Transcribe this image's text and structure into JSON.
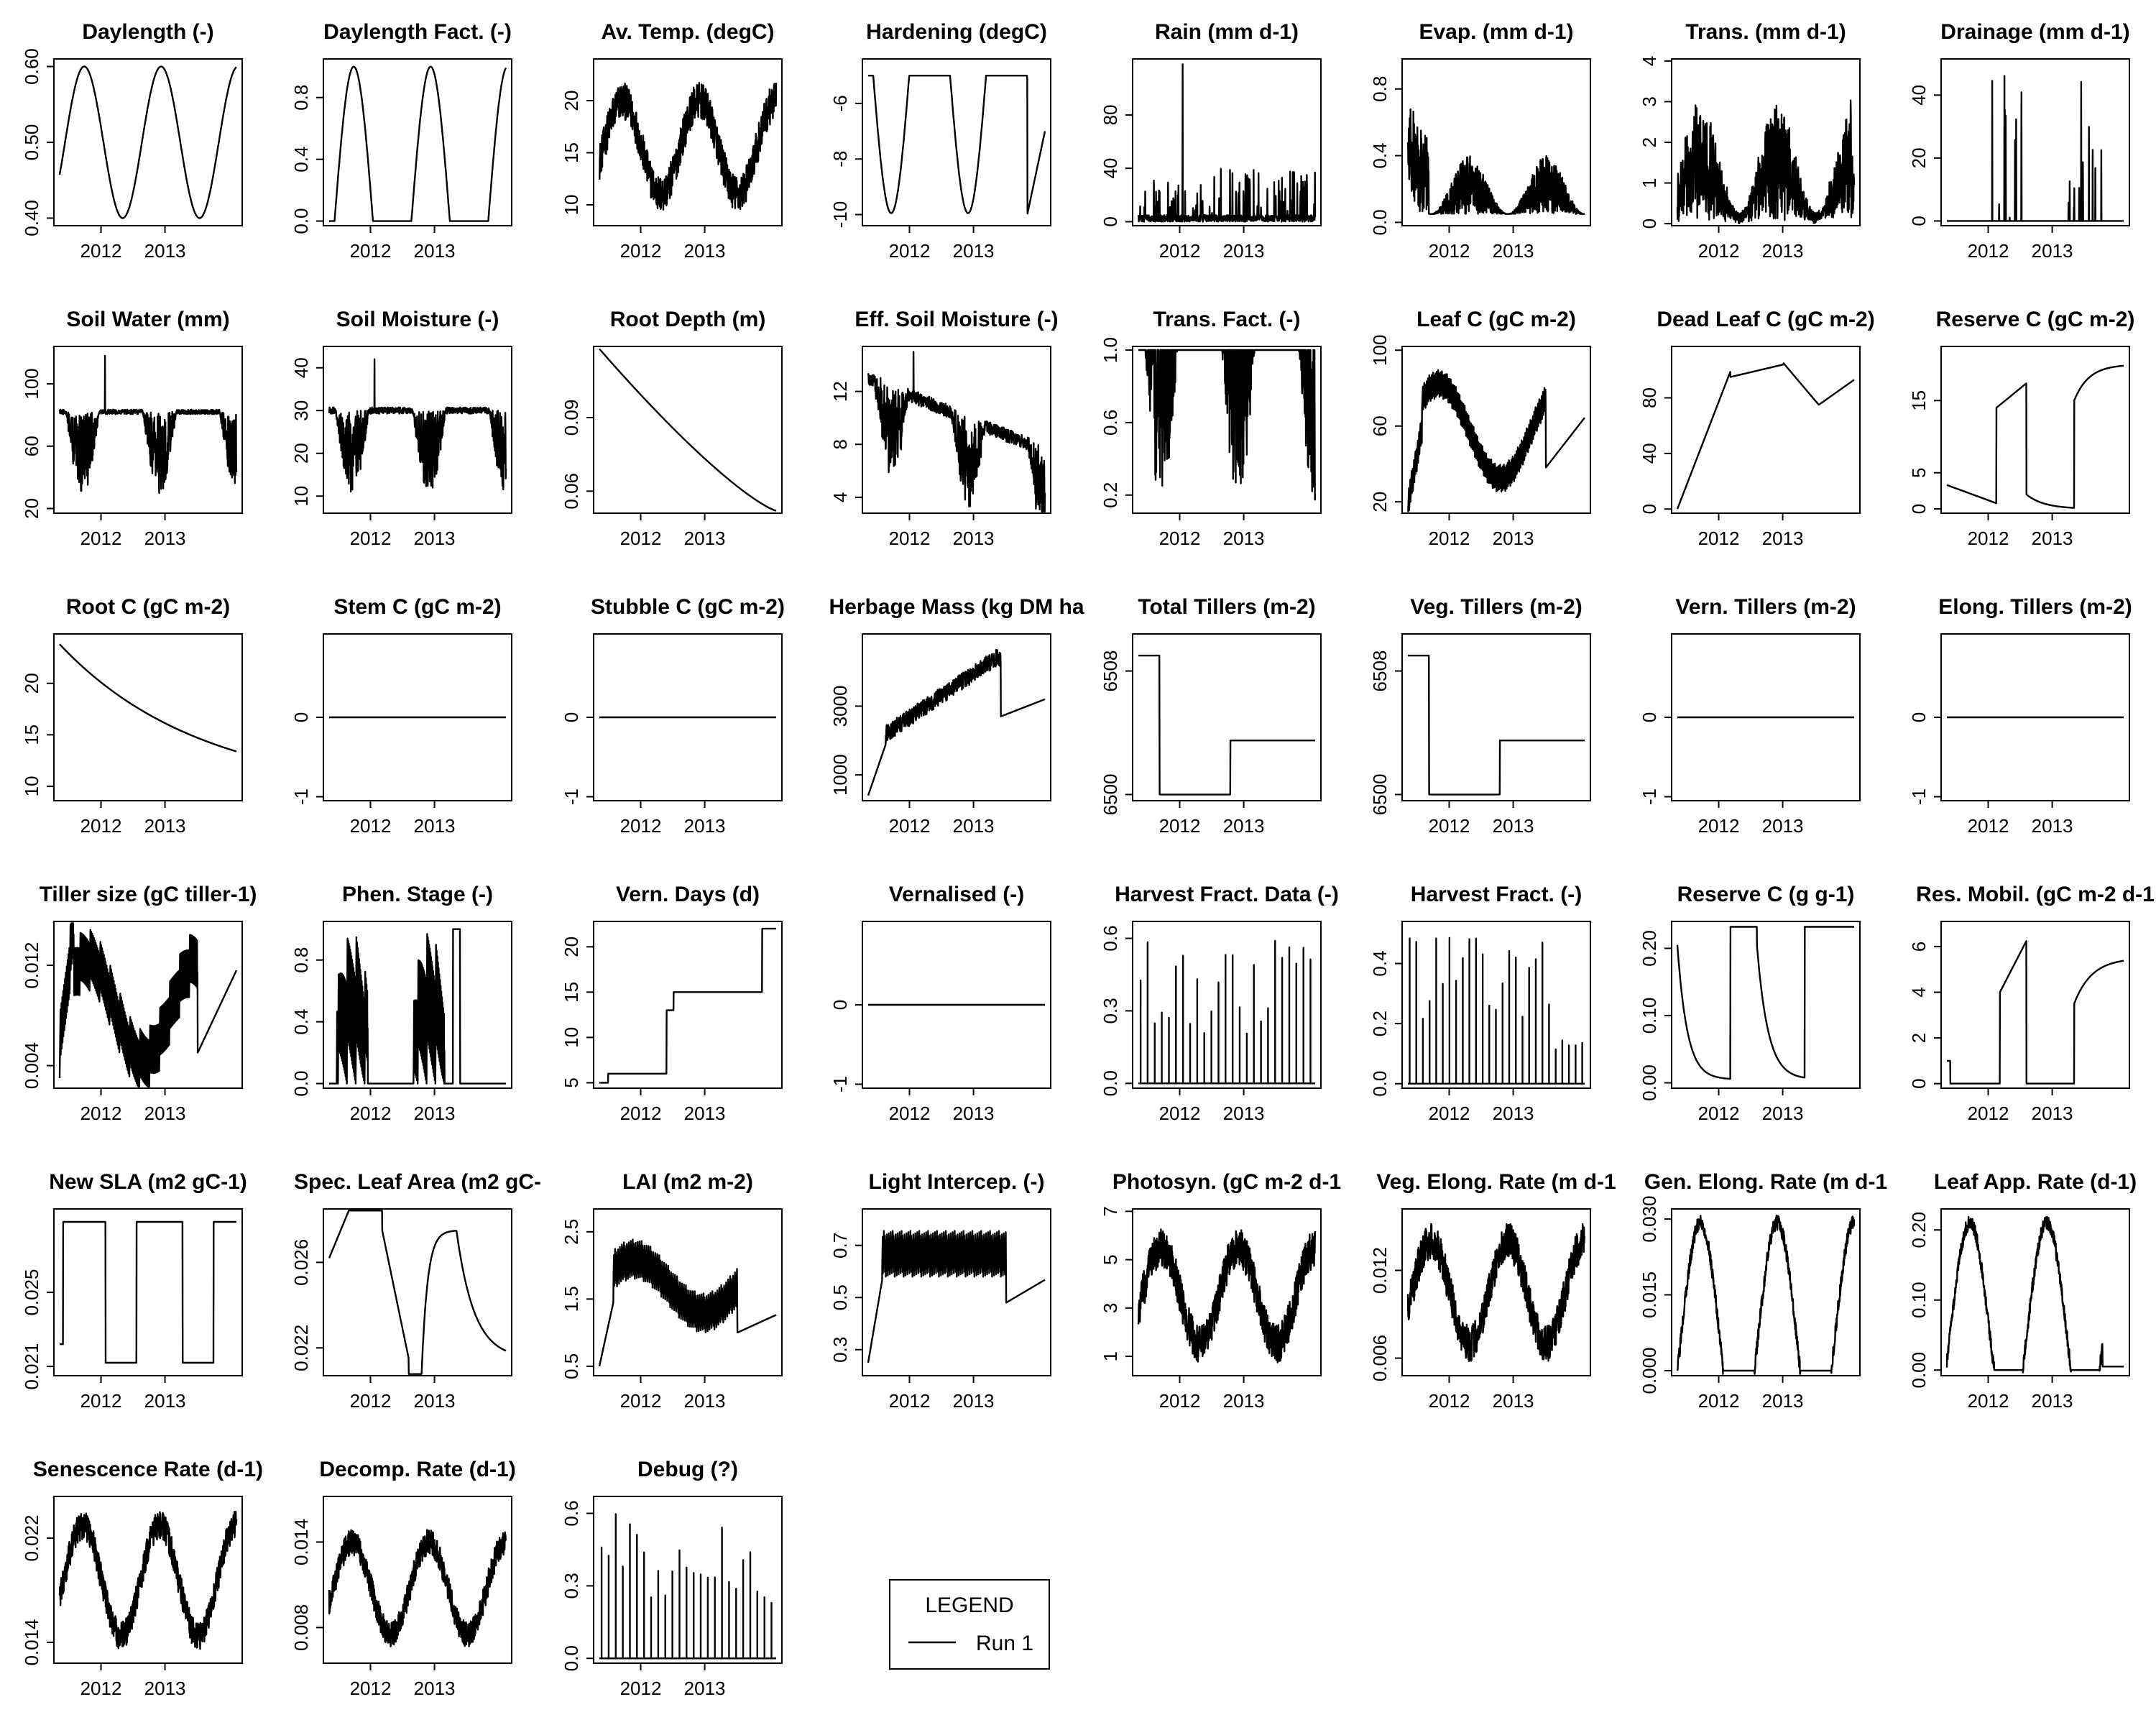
{
  "legend": {
    "title": "LEGEND",
    "entries": [
      "Run 1"
    ]
  },
  "x_ticks": [
    "2012",
    "2013"
  ],
  "chart_data": [
    {
      "type": "line",
      "title": "Daylength (-)",
      "ylim": [
        0.39,
        0.61
      ],
      "yticks": [
        "0.40",
        "0.50",
        "0.60"
      ],
      "yvals": [
        0.4,
        0.5,
        0.6
      ],
      "shape": "daylen",
      "series": [
        {
          "name": "Run 1"
        }
      ]
    },
    {
      "type": "line",
      "title": "Daylength Fact. (-)",
      "ylim": [
        -0.03,
        1.05
      ],
      "yticks": [
        "0.0",
        "0.4",
        "0.8"
      ],
      "yvals": [
        0.0,
        0.4,
        0.8
      ],
      "shape": "dlfact",
      "series": [
        {
          "name": "Run 1"
        }
      ]
    },
    {
      "type": "line",
      "title": "Av. Temp. (degC)",
      "ylim": [
        8,
        24
      ],
      "yticks": [
        "10",
        "15",
        "20"
      ],
      "yvals": [
        10,
        15,
        20
      ],
      "shape": "temp",
      "series": [
        {
          "name": "Run 1"
        }
      ]
    },
    {
      "type": "line",
      "title": "Hardening (degC)",
      "ylim": [
        -10.4,
        -4.4
      ],
      "yticks": [
        "-10",
        "-8",
        "-6"
      ],
      "yvals": [
        -10,
        -8,
        -6
      ],
      "shape": "hard",
      "series": [
        {
          "name": "Run 1"
        }
      ]
    },
    {
      "type": "line",
      "title": "Rain (mm d-1)",
      "ylim": [
        -3,
        122
      ],
      "yticks": [
        "0",
        "40",
        "80"
      ],
      "yvals": [
        0,
        40,
        80
      ],
      "shape": "rain",
      "series": [
        {
          "name": "Run 1"
        }
      ]
    },
    {
      "type": "line",
      "title": "Evap. (mm d-1)",
      "ylim": [
        -0.02,
        0.98
      ],
      "yticks": [
        "0.0",
        "0.4",
        "0.8"
      ],
      "yvals": [
        0.0,
        0.4,
        0.8
      ],
      "shape": "evap",
      "series": [
        {
          "name": "Run 1"
        }
      ]
    },
    {
      "type": "line",
      "title": "Trans. (mm d-1)",
      "ylim": [
        -0.05,
        4.05
      ],
      "yticks": [
        "0",
        "1",
        "2",
        "3",
        "4"
      ],
      "yvals": [
        0,
        1,
        2,
        3,
        4
      ],
      "shape": "trans",
      "series": [
        {
          "name": "Run 1"
        }
      ]
    },
    {
      "type": "line",
      "title": "Drainage (mm d-1)",
      "ylim": [
        -1.5,
        51.5
      ],
      "yticks": [
        "0",
        "20",
        "40"
      ],
      "yvals": [
        0,
        20,
        40
      ],
      "shape": "drain",
      "series": [
        {
          "name": "Run 1"
        }
      ]
    },
    {
      "type": "line",
      "title": "Soil Water (mm)",
      "ylim": [
        17,
        124
      ],
      "yticks": [
        "20",
        "60",
        "100"
      ],
      "yvals": [
        20,
        60,
        100
      ],
      "shape": "soilw",
      "series": [
        {
          "name": "Run 1"
        }
      ]
    },
    {
      "type": "line",
      "title": "Soil Moisture (-)",
      "ylim": [
        6,
        45
      ],
      "yticks": [
        "10",
        "20",
        "30",
        "40"
      ],
      "yvals": [
        10,
        20,
        30,
        40
      ],
      "shape": "soilm",
      "series": [
        {
          "name": "Run 1"
        }
      ]
    },
    {
      "type": "line",
      "title": "Root Depth (m)",
      "ylim": [
        0.051,
        0.119
      ],
      "yticks": [
        "0.06",
        "0.09"
      ],
      "yvals": [
        0.06,
        0.09
      ],
      "shape": "rootd",
      "series": [
        {
          "name": "Run 1"
        }
      ]
    },
    {
      "type": "line",
      "title": "Eff. Soil Moisture (-)",
      "ylim": [
        2.8,
        15.4
      ],
      "yticks": [
        "4",
        "8",
        "12"
      ],
      "yvals": [
        4,
        8,
        12
      ],
      "shape": "effsm",
      "series": [
        {
          "name": "Run 1"
        }
      ]
    },
    {
      "type": "line",
      "title": "Trans. Fact. (-)",
      "ylim": [
        0.1,
        1.02
      ],
      "yticks": [
        "0.2",
        "0.6",
        "1.0"
      ],
      "yvals": [
        0.2,
        0.6,
        1.0
      ],
      "shape": "tfact",
      "series": [
        {
          "name": "Run 1"
        }
      ]
    },
    {
      "type": "line",
      "title": "Leaf C (gC m-2)",
      "ylim": [
        14,
        102
      ],
      "yticks": [
        "20",
        "60",
        "100"
      ],
      "yvals": [
        20,
        60,
        100
      ],
      "shape": "leafc",
      "series": [
        {
          "name": "Run 1"
        }
      ]
    },
    {
      "type": "line",
      "title": "Dead Leaf C (gC m-2)",
      "ylim": [
        -3,
        117
      ],
      "yticks": [
        "0",
        "40",
        "80"
      ],
      "yvals": [
        0,
        40,
        80
      ],
      "shape": "deadleaf",
      "series": [
        {
          "name": "Run 1"
        }
      ]
    },
    {
      "type": "line",
      "title": "Reserve C (gC m-2)",
      "ylim": [
        -0.6,
        22.5
      ],
      "yticks": [
        "0",
        "5",
        "15"
      ],
      "yvals": [
        0,
        5,
        15
      ],
      "shape": "reservec",
      "series": [
        {
          "name": "Run 1"
        }
      ]
    },
    {
      "type": "line",
      "title": "Root C (gC m-2)",
      "ylim": [
        8.6,
        24.8
      ],
      "yticks": [
        "10",
        "15",
        "20"
      ],
      "yvals": [
        10,
        15,
        20
      ],
      "shape": "rootc",
      "series": [
        {
          "name": "Run 1"
        }
      ]
    },
    {
      "type": "line",
      "title": "Stem C (gC m-2)",
      "ylim": [
        -1.05,
        1.05
      ],
      "yticks": [
        "-1",
        "0"
      ],
      "yvals": [
        -1,
        0
      ],
      "shape": "zero",
      "series": [
        {
          "name": "Run 1"
        }
      ]
    },
    {
      "type": "line",
      "title": "Stubble C (gC m-2)",
      "ylim": [
        -1.05,
        1.05
      ],
      "yticks": [
        "-1",
        "0"
      ],
      "yvals": [
        -1,
        0
      ],
      "shape": "zero",
      "series": [
        {
          "name": "Run 1"
        }
      ]
    },
    {
      "type": "line",
      "title": "Herbage Mass (kg DM ha",
      "ylim": [
        250,
        5100
      ],
      "yticks": [
        "1000",
        "3000"
      ],
      "yvals": [
        1000,
        3000
      ],
      "shape": "herb",
      "series": [
        {
          "name": "Run 1"
        }
      ]
    },
    {
      "type": "line",
      "title": "Total Tillers (m-2)",
      "ylim": [
        6499.6,
        6510.4
      ],
      "yticks": [
        "6500",
        "6508"
      ],
      "yvals": [
        6500,
        6508
      ],
      "shape": "tillers",
      "series": [
        {
          "name": "Run 1"
        }
      ]
    },
    {
      "type": "line",
      "title": "Veg. Tillers (m-2)",
      "ylim": [
        6499.6,
        6510.4
      ],
      "yticks": [
        "6500",
        "6508"
      ],
      "yvals": [
        6500,
        6508
      ],
      "shape": "tillers",
      "series": [
        {
          "name": "Run 1"
        }
      ]
    },
    {
      "type": "line",
      "title": "Vern. Tillers (m-2)",
      "ylim": [
        -1.05,
        1.05
      ],
      "yticks": [
        "-1",
        "0"
      ],
      "yvals": [
        -1,
        0
      ],
      "shape": "zero",
      "series": [
        {
          "name": "Run 1"
        }
      ]
    },
    {
      "type": "line",
      "title": "Elong. Tillers (m-2)",
      "ylim": [
        -1.05,
        1.05
      ],
      "yticks": [
        "-1",
        "0"
      ],
      "yvals": [
        -1,
        0
      ],
      "shape": "zero",
      "series": [
        {
          "name": "Run 1"
        }
      ]
    },
    {
      "type": "line",
      "title": "Tiller size (gC tiller-1)",
      "ylim": [
        0.0022,
        0.0155
      ],
      "yticks": [
        "0.004",
        "0.012"
      ],
      "yvals": [
        0.004,
        0.012
      ],
      "shape": "tiller",
      "series": [
        {
          "name": "Run 1"
        }
      ]
    },
    {
      "type": "line",
      "title": "Phen. Stage (-)",
      "ylim": [
        -0.03,
        1.05
      ],
      "yticks": [
        "0.0",
        "0.4",
        "0.8"
      ],
      "yvals": [
        0.0,
        0.4,
        0.8
      ],
      "shape": "phen",
      "series": [
        {
          "name": "Run 1"
        }
      ]
    },
    {
      "type": "line",
      "title": "Vern. Days (d)",
      "ylim": [
        4.4,
        22.8
      ],
      "yticks": [
        "5",
        "10",
        "15",
        "20"
      ],
      "yvals": [
        5,
        10,
        15,
        20
      ],
      "shape": "vern",
      "series": [
        {
          "name": "Run 1"
        }
      ]
    },
    {
      "type": "line",
      "title": "Vernalised (-)",
      "ylim": [
        -1.05,
        1.05
      ],
      "yticks": [
        "-1",
        "0"
      ],
      "yvals": [
        -1,
        0
      ],
      "shape": "zero",
      "series": [
        {
          "name": "Run 1"
        }
      ]
    },
    {
      "type": "line",
      "title": "Harvest Fract. Data (-)",
      "ylim": [
        -0.02,
        0.67
      ],
      "yticks": [
        "0.0",
        "0.3",
        "0.6"
      ],
      "yvals": [
        0.0,
        0.3,
        0.6
      ],
      "shape": "harvd",
      "series": [
        {
          "name": "Run 1"
        }
      ]
    },
    {
      "type": "line",
      "title": "Harvest Fract. (-)",
      "ylim": [
        -0.015,
        0.54
      ],
      "yticks": [
        "0.0",
        "0.2",
        "0.4"
      ],
      "yvals": [
        0.0,
        0.2,
        0.4
      ],
      "shape": "harvf",
      "series": [
        {
          "name": "Run 1"
        }
      ]
    },
    {
      "type": "line",
      "title": "Reserve C (g g-1)",
      "ylim": [
        -0.008,
        0.24
      ],
      "yticks": [
        "0.00",
        "0.10",
        "0.20"
      ],
      "yvals": [
        0.0,
        0.1,
        0.2
      ],
      "shape": "reservegg",
      "series": [
        {
          "name": "Run 1"
        }
      ]
    },
    {
      "type": "line",
      "title": "Res. Mobil. (gC m-2 d-1",
      "ylim": [
        -0.2,
        7.1
      ],
      "yticks": [
        "0",
        "2",
        "4",
        "6"
      ],
      "yvals": [
        0,
        2,
        4,
        6
      ],
      "shape": "resmob",
      "series": [
        {
          "name": "Run 1"
        }
      ]
    },
    {
      "type": "line",
      "title": "New SLA (m2 gC-1)",
      "ylim": [
        0.0205,
        0.0295
      ],
      "yticks": [
        "0.021",
        "0.025"
      ],
      "yvals": [
        0.021,
        0.025
      ],
      "shape": "newsla",
      "series": [
        {
          "name": "Run 1"
        }
      ]
    },
    {
      "type": "line",
      "title": "Spec. Leaf Area (m2 gC-",
      "ylim": [
        0.0207,
        0.0285
      ],
      "yticks": [
        "0.022",
        "0.026"
      ],
      "yvals": [
        0.022,
        0.026
      ],
      "shape": "sla",
      "series": [
        {
          "name": "Run 1"
        }
      ]
    },
    {
      "type": "line",
      "title": "LAI (m2 m-2)",
      "ylim": [
        0.36,
        2.84
      ],
      "yticks": [
        "0.5",
        "1.5",
        "2.5"
      ],
      "yvals": [
        0.5,
        1.5,
        2.5
      ],
      "shape": "lai",
      "series": [
        {
          "name": "Run 1"
        }
      ]
    },
    {
      "type": "line",
      "title": "Light Intercep. (-)",
      "ylim": [
        0.2,
        0.84
      ],
      "yticks": [
        "0.3",
        "0.5",
        "0.7"
      ],
      "yvals": [
        0.3,
        0.5,
        0.7
      ],
      "shape": "light",
      "series": [
        {
          "name": "Run 1"
        }
      ]
    },
    {
      "type": "line",
      "title": "Photosyn. (gC m-2 d-1",
      "ylim": [
        0.2,
        7.1
      ],
      "yticks": [
        "1",
        "3",
        "5",
        "7"
      ],
      "yvals": [
        1,
        3,
        5,
        7
      ],
      "shape": "photo",
      "series": [
        {
          "name": "Run 1"
        }
      ]
    },
    {
      "type": "line",
      "title": "Veg. Elong. Rate (m d-1",
      "ylim": [
        0.0048,
        0.0162
      ],
      "yticks": [
        "0.006",
        "0.012"
      ],
      "yvals": [
        0.006,
        0.012
      ],
      "shape": "elong",
      "series": [
        {
          "name": "Run 1"
        }
      ]
    },
    {
      "type": "line",
      "title": "Gen. Elong. Rate (m d-1",
      "ylim": [
        -0.001,
        0.032
      ],
      "yticks": [
        "0.000",
        "0.015",
        "0.030"
      ],
      "yvals": [
        0.0,
        0.015,
        0.03
      ],
      "shape": "genel",
      "series": [
        {
          "name": "Run 1"
        }
      ]
    },
    {
      "type": "line",
      "title": "Leaf App. Rate (d-1)",
      "ylim": [
        -0.008,
        0.23
      ],
      "yticks": [
        "0.00",
        "0.10",
        "0.20"
      ],
      "yvals": [
        0.0,
        0.1,
        0.2
      ],
      "shape": "leafapp",
      "series": [
        {
          "name": "Run 1"
        }
      ]
    },
    {
      "type": "line",
      "title": "Senescence Rate (d-1)",
      "ylim": [
        0.0124,
        0.0252
      ],
      "yticks": [
        "0.014",
        "0.022"
      ],
      "yvals": [
        0.014,
        0.022
      ],
      "shape": "senesc",
      "series": [
        {
          "name": "Run 1"
        }
      ]
    },
    {
      "type": "line",
      "title": "Decomp. Rate (d-1)",
      "ylim": [
        0.0055,
        0.0172
      ],
      "yticks": [
        "0.008",
        "0.014"
      ],
      "yvals": [
        0.008,
        0.014
      ],
      "shape": "decomp",
      "series": [
        {
          "name": "Run 1"
        }
      ]
    },
    {
      "type": "line",
      "title": "Debug (?)",
      "ylim": [
        -0.02,
        0.67
      ],
      "yticks": [
        "0.0",
        "0.3",
        "0.6"
      ],
      "yvals": [
        0.0,
        0.3,
        0.6
      ],
      "shape": "harvd",
      "series": [
        {
          "name": "Run 1"
        }
      ]
    }
  ]
}
